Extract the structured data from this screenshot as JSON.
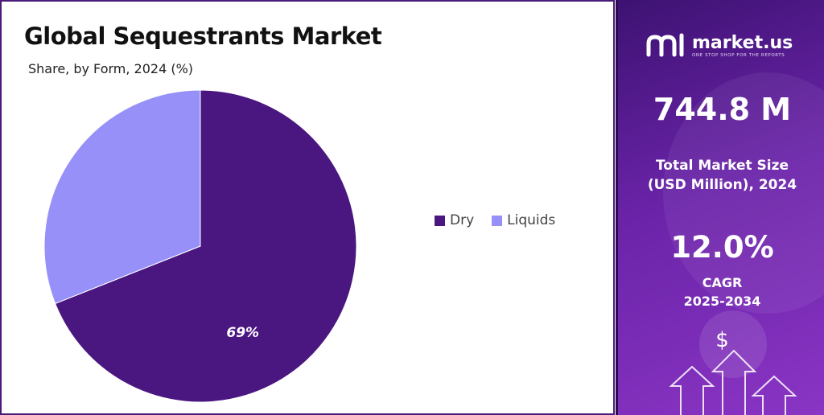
{
  "header": {
    "title": "Global Sequestrants Market",
    "subtitle": "Share, by Form, 2024 (%)"
  },
  "chart_data": {
    "type": "pie",
    "categories": [
      "Dry",
      "Liquids"
    ],
    "values": [
      69,
      31
    ],
    "colors": [
      "#4a1680",
      "#9690f8"
    ],
    "data_labels": [
      "69%",
      ""
    ],
    "legend_position": "right"
  },
  "legend": {
    "items": [
      {
        "label": "Dry",
        "color": "#4a1680"
      },
      {
        "label": "Liquids",
        "color": "#9690f8"
      }
    ]
  },
  "sidebar": {
    "brand_name": "market.us",
    "brand_tagline": "ONE STOP SHOP FOR THE REPORTS",
    "market_size_value": "744.8 M",
    "market_size_label_line1": "Total Market Size",
    "market_size_label_line2": "(USD Million), 2024",
    "cagr_value": "12.0%",
    "cagr_label_line1": "CAGR",
    "cagr_label_line2": "2025-2034",
    "dollar_symbol": "$",
    "background_color": "#6a23a8"
  }
}
